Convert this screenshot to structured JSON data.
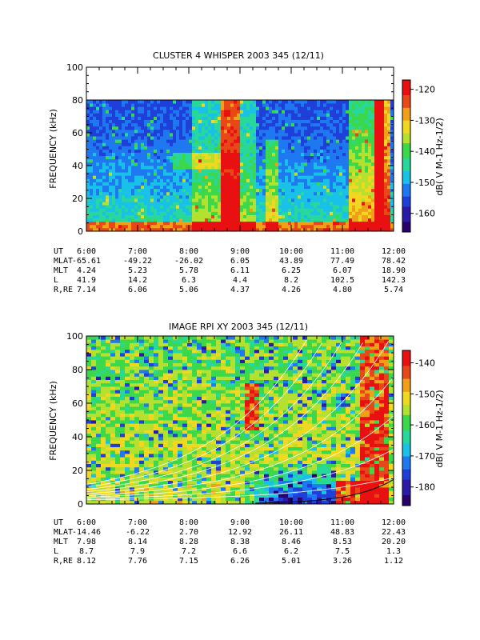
{
  "chart_data": [
    {
      "type": "heatmap",
      "title": "CLUSTER 4 WHISPER 2003 345 (12/11)",
      "ylabel": "FREQUENCY (kHz)",
      "ylim": [
        0,
        100
      ],
      "yticks": [
        "0",
        "20",
        "40",
        "60",
        "80",
        "100"
      ],
      "xlim": [
        6,
        12
      ],
      "data_ceiling_khz": 80,
      "colorbar": {
        "label": "dB( V M-1 Hz-1/2)",
        "ticks": [
          "-120",
          "-130",
          "-140",
          "-150",
          "-160"
        ],
        "range": [
          -166,
          -117
        ]
      },
      "ephemeris": {
        "row_labels": [
          "UT",
          "MLAT",
          "MLT",
          "L",
          "R,RE"
        ],
        "columns": [
          {
            "ut": "6:00",
            "mlat": "-65.61",
            "mlt": "4.24",
            "l": "41.9",
            "r": "7.14"
          },
          {
            "ut": "7:00",
            "mlat": "-49.22",
            "mlt": "5.23",
            "l": "14.2",
            "r": "6.06"
          },
          {
            "ut": "8:00",
            "mlat": "-26.02",
            "mlt": "5.78",
            "l": "6.3",
            "r": "5.06"
          },
          {
            "ut": "9:00",
            "mlat": "6.05",
            "mlt": "6.11",
            "l": "4.4",
            "r": "4.37"
          },
          {
            "ut": "10:00",
            "mlat": "43.89",
            "mlt": "6.25",
            "l": "8.2",
            "r": "4.26"
          },
          {
            "ut": "11:00",
            "mlat": "77.49",
            "mlt": "6.07",
            "l": "102.5",
            "r": "4.80"
          },
          {
            "ut": "12:00",
            "mlat": "78.42",
            "mlt": "18.90",
            "l": "142.3",
            "r": "5.74"
          }
        ]
      }
    },
    {
      "type": "heatmap",
      "title": "IMAGE RPI XY 2003 345 (12/11)",
      "ylabel": "FREQUENCY (kHz)",
      "ylim": [
        0,
        100
      ],
      "yticks": [
        "0",
        "20",
        "40",
        "60",
        "80",
        "100"
      ],
      "xlim": [
        6,
        12
      ],
      "colorbar": {
        "label": "dB( V M-1 Hz-1/2)",
        "ticks": [
          "-140",
          "-150",
          "-160",
          "-170",
          "-180"
        ],
        "range": [
          -186,
          -136
        ]
      },
      "ephemeris": {
        "row_labels": [
          "UT",
          "MLAT",
          "MLT",
          "L",
          "R,RE"
        ],
        "columns": [
          {
            "ut": "6:00",
            "mlat": "-14.46",
            "mlt": "7.98",
            "l": "8.7",
            "r": "8.12"
          },
          {
            "ut": "7:00",
            "mlat": "-6.22",
            "mlt": "8.14",
            "l": "7.9",
            "r": "7.76"
          },
          {
            "ut": "8:00",
            "mlat": "2.70",
            "mlt": "8.28",
            "l": "7.2",
            "r": "7.15"
          },
          {
            "ut": "9:00",
            "mlat": "12.92",
            "mlt": "8.38",
            "l": "6.6",
            "r": "6.26"
          },
          {
            "ut": "10:00",
            "mlat": "26.11",
            "mlt": "8.46",
            "l": "6.2",
            "r": "5.01"
          },
          {
            "ut": "11:00",
            "mlat": "48.83",
            "mlt": "8.53",
            "l": "7.5",
            "r": "3.26"
          },
          {
            "ut": "12:00",
            "mlat": "22.43",
            "mlt": "20.20",
            "l": "1.3",
            "r": "1.12"
          }
        ]
      }
    }
  ],
  "colors": {
    "scale": [
      "#2a006b",
      "#2b1aa8",
      "#1f3fd8",
      "#1e78f0",
      "#19c0e8",
      "#28d89a",
      "#3ad84a",
      "#b4e030",
      "#f0d820",
      "#f0a018",
      "#e84818",
      "#e81010"
    ]
  }
}
